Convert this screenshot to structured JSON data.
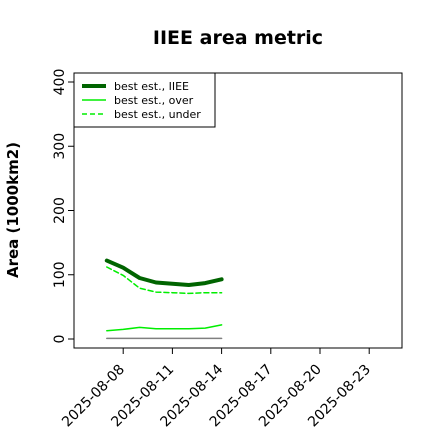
{
  "chart_data": {
    "type": "line",
    "title": "IIEE area metric",
    "xlabel": "",
    "ylabel": "Area (1000km2)",
    "xlim": [
      "2025-08-05",
      "2025-08-25"
    ],
    "ylim": [
      -14,
      414
    ],
    "yticks": [
      0,
      100,
      200,
      300,
      400
    ],
    "xticks": [
      "2025-08-08",
      "2025-08-11",
      "2025-08-14",
      "2025-08-17",
      "2025-08-20",
      "2025-08-23"
    ],
    "legend_position": "top-left",
    "grid": false,
    "x": [
      "2025-08-07",
      "2025-08-08",
      "2025-08-09",
      "2025-08-10",
      "2025-08-11",
      "2025-08-12",
      "2025-08-13",
      "2025-08-14"
    ],
    "series": [
      {
        "name": "best est., IIEE",
        "color": "#006400",
        "style": "solid",
        "width": "thick",
        "values": [
          122,
          111,
          95,
          88,
          86,
          84,
          87,
          93
        ]
      },
      {
        "name": "best est., over",
        "color": "#00ee00",
        "style": "solid",
        "width": "thin",
        "values": [
          13,
          15,
          18,
          16,
          16,
          16,
          17,
          22
        ]
      },
      {
        "name": "best est., under",
        "color": "#00ee00",
        "style": "dashed",
        "width": "thin",
        "values": [
          112,
          99,
          79,
          73,
          72,
          71,
          72,
          72
        ]
      },
      {
        "name": "",
        "color": "#808080",
        "style": "solid",
        "width": "thin",
        "values": [
          1,
          1,
          1,
          1,
          1,
          1,
          1,
          1
        ]
      }
    ]
  }
}
